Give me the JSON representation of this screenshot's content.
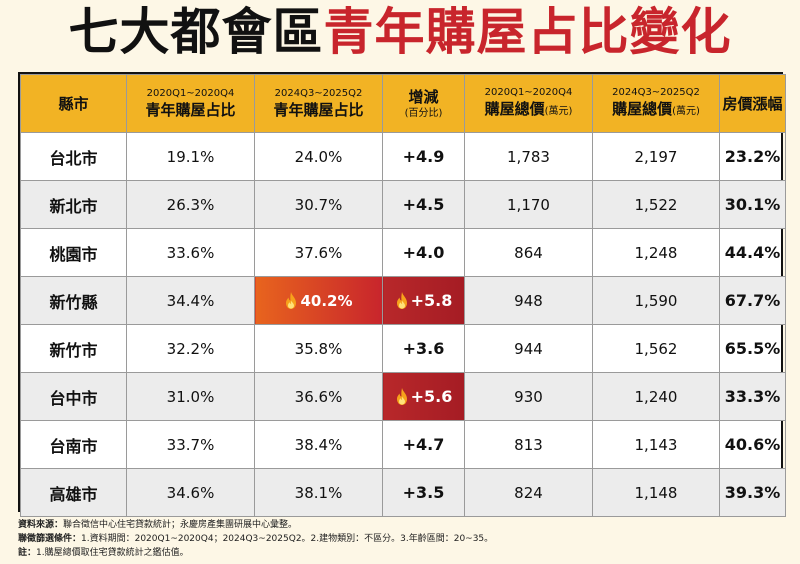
{
  "title": {
    "part1": "七大都會區",
    "part2": "青年購屋占比變化"
  },
  "colors": {
    "accent_red": "#c8252c",
    "header_yellow": "#f2b324",
    "highlight_orange": "#e8641e"
  },
  "table": {
    "headers": {
      "city": "縣市",
      "share1_sub": "2020Q1~2020Q4",
      "share1_main": "青年購屋占比",
      "share2_sub": "2024Q3~2025Q2",
      "share2_main": "青年購屋占比",
      "change_main": "增減",
      "change_unit": "(百分比)",
      "price1_sub": "2020Q1~2020Q4",
      "price1_main": "購屋總價",
      "price1_unit": "(萬元)",
      "price2_sub": "2024Q3~2025Q2",
      "price2_main": "購屋總價",
      "price2_unit": "(萬元)",
      "growth": "房價漲幅"
    },
    "rows": [
      {
        "city": "台北市",
        "share1": "19.1%",
        "share2": "24.0%",
        "change": "+4.9",
        "price1": "1,783",
        "price2": "2,197",
        "growth": "23.2%"
      },
      {
        "city": "新北市",
        "share1": "26.3%",
        "share2": "30.7%",
        "change": "+4.5",
        "price1": "1,170",
        "price2": "1,522",
        "growth": "30.1%"
      },
      {
        "city": "桃園市",
        "share1": "33.6%",
        "share2": "37.6%",
        "change": "+4.0",
        "price1": "864",
        "price2": "1,248",
        "growth": "44.4%"
      },
      {
        "city": "新竹縣",
        "share1": "34.4%",
        "share2": "40.2%",
        "change": "+5.8",
        "price1": "948",
        "price2": "1,590",
        "growth": "67.7%"
      },
      {
        "city": "新竹市",
        "share1": "32.2%",
        "share2": "35.8%",
        "change": "+3.6",
        "price1": "944",
        "price2": "1,562",
        "growth": "65.5%"
      },
      {
        "city": "台中市",
        "share1": "31.0%",
        "share2": "36.6%",
        "change": "+5.6",
        "price1": "930",
        "price2": "1,240",
        "growth": "33.3%"
      },
      {
        "city": "台南市",
        "share1": "33.7%",
        "share2": "38.4%",
        "change": "+4.7",
        "price1": "813",
        "price2": "1,143",
        "growth": "40.6%"
      },
      {
        "city": "高雄市",
        "share1": "34.6%",
        "share2": "38.1%",
        "change": "+3.5",
        "price1": "824",
        "price2": "1,148",
        "growth": "39.3%"
      }
    ]
  },
  "notes": {
    "source_label": "資料來源：",
    "source": "聯合徵信中心住宅貸款統計；永慶房產集團研展中心彙整。",
    "filter_label": "聯徵篩選條件：",
    "filter": "1.資料期間：2020Q1~2020Q4；2024Q3~2025Q2。2.建物類別：不區分。3.年齡區間：20~35。",
    "note_label": "註：",
    "note": "1.購屋總價取住宅貸款統計之鑑估值。"
  }
}
